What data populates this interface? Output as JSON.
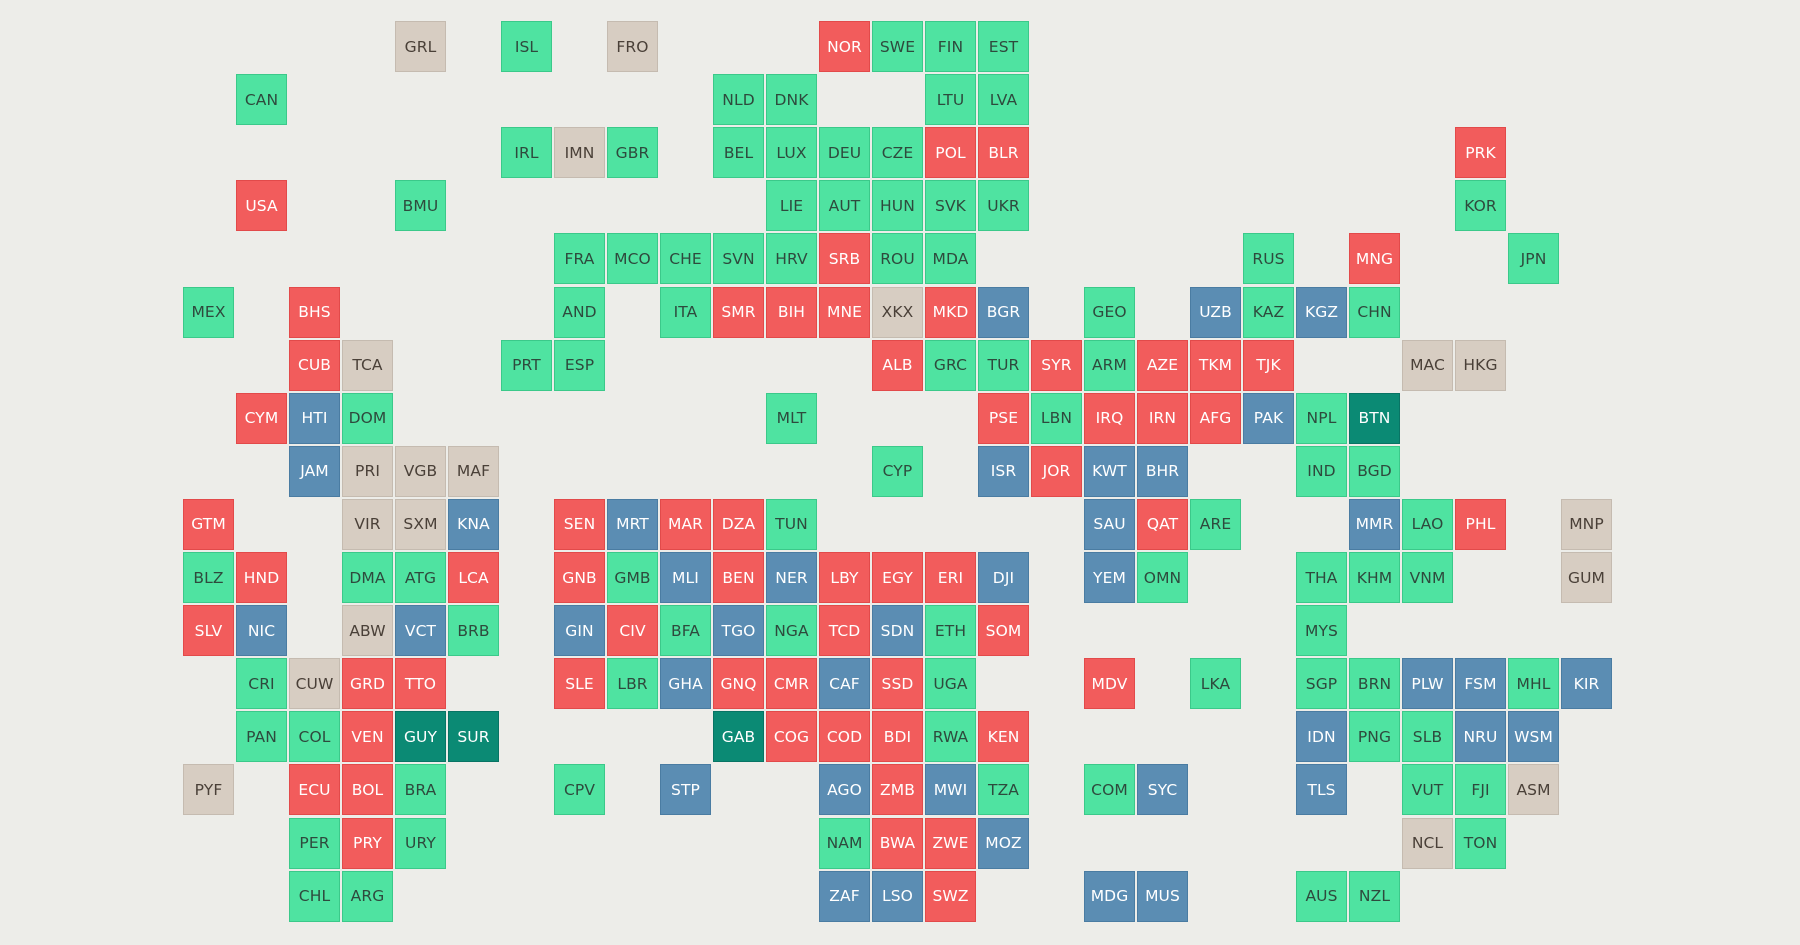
{
  "colors": {
    "background": "#edede9",
    "green": {
      "fill": "#4fe3a1",
      "text": "#2e4a3d",
      "edge": "#3bc98a"
    },
    "red": {
      "fill": "#f25c5c",
      "text": "#ffffff",
      "edge": "#e24a4a"
    },
    "blue": {
      "fill": "#5b8db3",
      "text": "#ffffff",
      "edge": "#4a7ca2"
    },
    "teal": {
      "fill": "#0b8a74",
      "text": "#ffffff",
      "edge": "#087464"
    },
    "beige": {
      "fill": "#d7cdc2",
      "text": "#4a4038",
      "edge": "#c5bbb0"
    }
  },
  "tiles": [
    {
      "code": "GRL",
      "col": 4,
      "row": 0,
      "cat": "beige"
    },
    {
      "code": "ISL",
      "col": 6,
      "row": 0,
      "cat": "green"
    },
    {
      "code": "FRO",
      "col": 8,
      "row": 0,
      "cat": "beige"
    },
    {
      "code": "NOR",
      "col": 12,
      "row": 0,
      "cat": "red"
    },
    {
      "code": "SWE",
      "col": 13,
      "row": 0,
      "cat": "green"
    },
    {
      "code": "FIN",
      "col": 14,
      "row": 0,
      "cat": "green"
    },
    {
      "code": "EST",
      "col": 15,
      "row": 0,
      "cat": "green"
    },
    {
      "code": "CAN",
      "col": 1,
      "row": 1,
      "cat": "green"
    },
    {
      "code": "NLD",
      "col": 10,
      "row": 1,
      "cat": "green"
    },
    {
      "code": "DNK",
      "col": 11,
      "row": 1,
      "cat": "green"
    },
    {
      "code": "LTU",
      "col": 14,
      "row": 1,
      "cat": "green"
    },
    {
      "code": "LVA",
      "col": 15,
      "row": 1,
      "cat": "green"
    },
    {
      "code": "IRL",
      "col": 6,
      "row": 2,
      "cat": "green"
    },
    {
      "code": "IMN",
      "col": 7,
      "row": 2,
      "cat": "beige"
    },
    {
      "code": "GBR",
      "col": 8,
      "row": 2,
      "cat": "green"
    },
    {
      "code": "BEL",
      "col": 10,
      "row": 2,
      "cat": "green"
    },
    {
      "code": "LUX",
      "col": 11,
      "row": 2,
      "cat": "green"
    },
    {
      "code": "DEU",
      "col": 12,
      "row": 2,
      "cat": "green"
    },
    {
      "code": "CZE",
      "col": 13,
      "row": 2,
      "cat": "green"
    },
    {
      "code": "POL",
      "col": 14,
      "row": 2,
      "cat": "red"
    },
    {
      "code": "BLR",
      "col": 15,
      "row": 2,
      "cat": "red"
    },
    {
      "code": "PRK",
      "col": 24,
      "row": 2,
      "cat": "red"
    },
    {
      "code": "USA",
      "col": 1,
      "row": 3,
      "cat": "red"
    },
    {
      "code": "BMU",
      "col": 4,
      "row": 3,
      "cat": "green"
    },
    {
      "code": "LIE",
      "col": 11,
      "row": 3,
      "cat": "green"
    },
    {
      "code": "AUT",
      "col": 12,
      "row": 3,
      "cat": "green"
    },
    {
      "code": "HUN",
      "col": 13,
      "row": 3,
      "cat": "green"
    },
    {
      "code": "SVK",
      "col": 14,
      "row": 3,
      "cat": "green"
    },
    {
      "code": "UKR",
      "col": 15,
      "row": 3,
      "cat": "green"
    },
    {
      "code": "KOR",
      "col": 24,
      "row": 3,
      "cat": "green"
    },
    {
      "code": "FRA",
      "col": 7,
      "row": 4,
      "cat": "green"
    },
    {
      "code": "MCO",
      "col": 8,
      "row": 4,
      "cat": "green"
    },
    {
      "code": "CHE",
      "col": 9,
      "row": 4,
      "cat": "green"
    },
    {
      "code": "SVN",
      "col": 10,
      "row": 4,
      "cat": "green"
    },
    {
      "code": "HRV",
      "col": 11,
      "row": 4,
      "cat": "green"
    },
    {
      "code": "SRB",
      "col": 12,
      "row": 4,
      "cat": "red"
    },
    {
      "code": "ROU",
      "col": 13,
      "row": 4,
      "cat": "green"
    },
    {
      "code": "MDA",
      "col": 14,
      "row": 4,
      "cat": "green"
    },
    {
      "code": "RUS",
      "col": 20,
      "row": 4,
      "cat": "green"
    },
    {
      "code": "MNG",
      "col": 22,
      "row": 4,
      "cat": "red"
    },
    {
      "code": "JPN",
      "col": 25,
      "row": 4,
      "cat": "green"
    },
    {
      "code": "MEX",
      "col": 0,
      "row": 5,
      "cat": "green"
    },
    {
      "code": "BHS",
      "col": 2,
      "row": 5,
      "cat": "red"
    },
    {
      "code": "AND",
      "col": 7,
      "row": 5,
      "cat": "green"
    },
    {
      "code": "ITA",
      "col": 9,
      "row": 5,
      "cat": "green"
    },
    {
      "code": "SMR",
      "col": 10,
      "row": 5,
      "cat": "red"
    },
    {
      "code": "BIH",
      "col": 11,
      "row": 5,
      "cat": "red"
    },
    {
      "code": "MNE",
      "col": 12,
      "row": 5,
      "cat": "red"
    },
    {
      "code": "XKX",
      "col": 13,
      "row": 5,
      "cat": "beige"
    },
    {
      "code": "MKD",
      "col": 14,
      "row": 5,
      "cat": "red"
    },
    {
      "code": "BGR",
      "col": 15,
      "row": 5,
      "cat": "blue"
    },
    {
      "code": "GEO",
      "col": 17,
      "row": 5,
      "cat": "green"
    },
    {
      "code": "UZB",
      "col": 19,
      "row": 5,
      "cat": "blue"
    },
    {
      "code": "KAZ",
      "col": 20,
      "row": 5,
      "cat": "green"
    },
    {
      "code": "KGZ",
      "col": 21,
      "row": 5,
      "cat": "blue"
    },
    {
      "code": "CHN",
      "col": 22,
      "row": 5,
      "cat": "green"
    },
    {
      "code": "CUB",
      "col": 2,
      "row": 6,
      "cat": "red"
    },
    {
      "code": "TCA",
      "col": 3,
      "row": 6,
      "cat": "beige"
    },
    {
      "code": "PRT",
      "col": 6,
      "row": 6,
      "cat": "green"
    },
    {
      "code": "ESP",
      "col": 7,
      "row": 6,
      "cat": "green"
    },
    {
      "code": "ALB",
      "col": 13,
      "row": 6,
      "cat": "red"
    },
    {
      "code": "GRC",
      "col": 14,
      "row": 6,
      "cat": "green"
    },
    {
      "code": "TUR",
      "col": 15,
      "row": 6,
      "cat": "green"
    },
    {
      "code": "SYR",
      "col": 16,
      "row": 6,
      "cat": "red"
    },
    {
      "code": "ARM",
      "col": 17,
      "row": 6,
      "cat": "green"
    },
    {
      "code": "AZE",
      "col": 18,
      "row": 6,
      "cat": "red"
    },
    {
      "code": "TKM",
      "col": 19,
      "row": 6,
      "cat": "red"
    },
    {
      "code": "TJK",
      "col": 20,
      "row": 6,
      "cat": "red"
    },
    {
      "code": "MAC",
      "col": 23,
      "row": 6,
      "cat": "beige"
    },
    {
      "code": "HKG",
      "col": 24,
      "row": 6,
      "cat": "beige"
    },
    {
      "code": "CYM",
      "col": 1,
      "row": 7,
      "cat": "red"
    },
    {
      "code": "HTI",
      "col": 2,
      "row": 7,
      "cat": "blue"
    },
    {
      "code": "DOM",
      "col": 3,
      "row": 7,
      "cat": "green"
    },
    {
      "code": "MLT",
      "col": 11,
      "row": 7,
      "cat": "green"
    },
    {
      "code": "PSE",
      "col": 15,
      "row": 7,
      "cat": "red"
    },
    {
      "code": "LBN",
      "col": 16,
      "row": 7,
      "cat": "green"
    },
    {
      "code": "IRQ",
      "col": 17,
      "row": 7,
      "cat": "red"
    },
    {
      "code": "IRN",
      "col": 18,
      "row": 7,
      "cat": "red"
    },
    {
      "code": "AFG",
      "col": 19,
      "row": 7,
      "cat": "red"
    },
    {
      "code": "PAK",
      "col": 20,
      "row": 7,
      "cat": "blue"
    },
    {
      "code": "NPL",
      "col": 21,
      "row": 7,
      "cat": "green"
    },
    {
      "code": "BTN",
      "col": 22,
      "row": 7,
      "cat": "teal"
    },
    {
      "code": "JAM",
      "col": 2,
      "row": 8,
      "cat": "blue"
    },
    {
      "code": "PRI",
      "col": 3,
      "row": 8,
      "cat": "beige"
    },
    {
      "code": "VGB",
      "col": 4,
      "row": 8,
      "cat": "beige"
    },
    {
      "code": "MAF",
      "col": 5,
      "row": 8,
      "cat": "beige"
    },
    {
      "code": "CYP",
      "col": 13,
      "row": 8,
      "cat": "green"
    },
    {
      "code": "ISR",
      "col": 15,
      "row": 8,
      "cat": "blue"
    },
    {
      "code": "JOR",
      "col": 16,
      "row": 8,
      "cat": "red"
    },
    {
      "code": "KWT",
      "col": 17,
      "row": 8,
      "cat": "blue"
    },
    {
      "code": "BHR",
      "col": 18,
      "row": 8,
      "cat": "blue"
    },
    {
      "code": "IND",
      "col": 21,
      "row": 8,
      "cat": "green"
    },
    {
      "code": "BGD",
      "col": 22,
      "row": 8,
      "cat": "green"
    },
    {
      "code": "GTM",
      "col": 0,
      "row": 9,
      "cat": "red"
    },
    {
      "code": "VIR",
      "col": 3,
      "row": 9,
      "cat": "beige"
    },
    {
      "code": "SXM",
      "col": 4,
      "row": 9,
      "cat": "beige"
    },
    {
      "code": "KNA",
      "col": 5,
      "row": 9,
      "cat": "blue"
    },
    {
      "code": "SEN",
      "col": 7,
      "row": 9,
      "cat": "red"
    },
    {
      "code": "MRT",
      "col": 8,
      "row": 9,
      "cat": "blue"
    },
    {
      "code": "MAR",
      "col": 9,
      "row": 9,
      "cat": "red"
    },
    {
      "code": "DZA",
      "col": 10,
      "row": 9,
      "cat": "red"
    },
    {
      "code": "TUN",
      "col": 11,
      "row": 9,
      "cat": "green"
    },
    {
      "code": "SAU",
      "col": 17,
      "row": 9,
      "cat": "blue"
    },
    {
      "code": "QAT",
      "col": 18,
      "row": 9,
      "cat": "red"
    },
    {
      "code": "ARE",
      "col": 19,
      "row": 9,
      "cat": "green"
    },
    {
      "code": "MMR",
      "col": 22,
      "row": 9,
      "cat": "blue"
    },
    {
      "code": "LAO",
      "col": 23,
      "row": 9,
      "cat": "green"
    },
    {
      "code": "PHL",
      "col": 24,
      "row": 9,
      "cat": "red"
    },
    {
      "code": "MNP",
      "col": 26,
      "row": 9,
      "cat": "beige"
    },
    {
      "code": "BLZ",
      "col": 0,
      "row": 10,
      "cat": "green"
    },
    {
      "code": "HND",
      "col": 1,
      "row": 10,
      "cat": "red"
    },
    {
      "code": "DMA",
      "col": 3,
      "row": 10,
      "cat": "green"
    },
    {
      "code": "ATG",
      "col": 4,
      "row": 10,
      "cat": "green"
    },
    {
      "code": "LCA",
      "col": 5,
      "row": 10,
      "cat": "red"
    },
    {
      "code": "GNB",
      "col": 7,
      "row": 10,
      "cat": "red"
    },
    {
      "code": "GMB",
      "col": 8,
      "row": 10,
      "cat": "green"
    },
    {
      "code": "MLI",
      "col": 9,
      "row": 10,
      "cat": "blue"
    },
    {
      "code": "BEN",
      "col": 10,
      "row": 10,
      "cat": "red"
    },
    {
      "code": "NER",
      "col": 11,
      "row": 10,
      "cat": "blue"
    },
    {
      "code": "LBY",
      "col": 12,
      "row": 10,
      "cat": "red"
    },
    {
      "code": "EGY",
      "col": 13,
      "row": 10,
      "cat": "red"
    },
    {
      "code": "ERI",
      "col": 14,
      "row": 10,
      "cat": "red"
    },
    {
      "code": "DJI",
      "col": 15,
      "row": 10,
      "cat": "blue"
    },
    {
      "code": "YEM",
      "col": 17,
      "row": 10,
      "cat": "blue"
    },
    {
      "code": "OMN",
      "col": 18,
      "row": 10,
      "cat": "green"
    },
    {
      "code": "THA",
      "col": 21,
      "row": 10,
      "cat": "green"
    },
    {
      "code": "KHM",
      "col": 22,
      "row": 10,
      "cat": "green"
    },
    {
      "code": "VNM",
      "col": 23,
      "row": 10,
      "cat": "green"
    },
    {
      "code": "GUM",
      "col": 26,
      "row": 10,
      "cat": "beige"
    },
    {
      "code": "SLV",
      "col": 0,
      "row": 11,
      "cat": "red"
    },
    {
      "code": "NIC",
      "col": 1,
      "row": 11,
      "cat": "blue"
    },
    {
      "code": "ABW",
      "col": 3,
      "row": 11,
      "cat": "beige"
    },
    {
      "code": "VCT",
      "col": 4,
      "row": 11,
      "cat": "blue"
    },
    {
      "code": "BRB",
      "col": 5,
      "row": 11,
      "cat": "green"
    },
    {
      "code": "GIN",
      "col": 7,
      "row": 11,
      "cat": "blue"
    },
    {
      "code": "CIV",
      "col": 8,
      "row": 11,
      "cat": "red"
    },
    {
      "code": "BFA",
      "col": 9,
      "row": 11,
      "cat": "green"
    },
    {
      "code": "TGO",
      "col": 10,
      "row": 11,
      "cat": "blue"
    },
    {
      "code": "NGA",
      "col": 11,
      "row": 11,
      "cat": "green"
    },
    {
      "code": "TCD",
      "col": 12,
      "row": 11,
      "cat": "red"
    },
    {
      "code": "SDN",
      "col": 13,
      "row": 11,
      "cat": "blue"
    },
    {
      "code": "ETH",
      "col": 14,
      "row": 11,
      "cat": "green"
    },
    {
      "code": "SOM",
      "col": 15,
      "row": 11,
      "cat": "red"
    },
    {
      "code": "MYS",
      "col": 21,
      "row": 11,
      "cat": "green"
    },
    {
      "code": "CRI",
      "col": 1,
      "row": 12,
      "cat": "green"
    },
    {
      "code": "CUW",
      "col": 2,
      "row": 12,
      "cat": "beige"
    },
    {
      "code": "GRD",
      "col": 3,
      "row": 12,
      "cat": "red"
    },
    {
      "code": "TTO",
      "col": 4,
      "row": 12,
      "cat": "red"
    },
    {
      "code": "SLE",
      "col": 7,
      "row": 12,
      "cat": "red"
    },
    {
      "code": "LBR",
      "col": 8,
      "row": 12,
      "cat": "green"
    },
    {
      "code": "GHA",
      "col": 9,
      "row": 12,
      "cat": "blue"
    },
    {
      "code": "GNQ",
      "col": 10,
      "row": 12,
      "cat": "red"
    },
    {
      "code": "CMR",
      "col": 11,
      "row": 12,
      "cat": "red"
    },
    {
      "code": "CAF",
      "col": 12,
      "row": 12,
      "cat": "blue"
    },
    {
      "code": "SSD",
      "col": 13,
      "row": 12,
      "cat": "red"
    },
    {
      "code": "UGA",
      "col": 14,
      "row": 12,
      "cat": "green"
    },
    {
      "code": "MDV",
      "col": 17,
      "row": 12,
      "cat": "red"
    },
    {
      "code": "LKA",
      "col": 19,
      "row": 12,
      "cat": "green"
    },
    {
      "code": "SGP",
      "col": 21,
      "row": 12,
      "cat": "green"
    },
    {
      "code": "BRN",
      "col": 22,
      "row": 12,
      "cat": "green"
    },
    {
      "code": "PLW",
      "col": 23,
      "row": 12,
      "cat": "blue"
    },
    {
      "code": "FSM",
      "col": 24,
      "row": 12,
      "cat": "blue"
    },
    {
      "code": "MHL",
      "col": 25,
      "row": 12,
      "cat": "green"
    },
    {
      "code": "KIR",
      "col": 26,
      "row": 12,
      "cat": "blue"
    },
    {
      "code": "PAN",
      "col": 1,
      "row": 13,
      "cat": "green"
    },
    {
      "code": "COL",
      "col": 2,
      "row": 13,
      "cat": "green"
    },
    {
      "code": "VEN",
      "col": 3,
      "row": 13,
      "cat": "red"
    },
    {
      "code": "GUY",
      "col": 4,
      "row": 13,
      "cat": "teal"
    },
    {
      "code": "SUR",
      "col": 5,
      "row": 13,
      "cat": "teal"
    },
    {
      "code": "GAB",
      "col": 10,
      "row": 13,
      "cat": "teal"
    },
    {
      "code": "COG",
      "col": 11,
      "row": 13,
      "cat": "red"
    },
    {
      "code": "COD",
      "col": 12,
      "row": 13,
      "cat": "red"
    },
    {
      "code": "BDI",
      "col": 13,
      "row": 13,
      "cat": "red"
    },
    {
      "code": "RWA",
      "col": 14,
      "row": 13,
      "cat": "green"
    },
    {
      "code": "KEN",
      "col": 15,
      "row": 13,
      "cat": "red"
    },
    {
      "code": "IDN",
      "col": 21,
      "row": 13,
      "cat": "blue"
    },
    {
      "code": "PNG",
      "col": 22,
      "row": 13,
      "cat": "green"
    },
    {
      "code": "SLB",
      "col": 23,
      "row": 13,
      "cat": "green"
    },
    {
      "code": "NRU",
      "col": 24,
      "row": 13,
      "cat": "blue"
    },
    {
      "code": "WSM",
      "col": 25,
      "row": 13,
      "cat": "blue"
    },
    {
      "code": "PYF",
      "col": 0,
      "row": 14,
      "cat": "beige"
    },
    {
      "code": "ECU",
      "col": 2,
      "row": 14,
      "cat": "red"
    },
    {
      "code": "BOL",
      "col": 3,
      "row": 14,
      "cat": "red"
    },
    {
      "code": "BRA",
      "col": 4,
      "row": 14,
      "cat": "green"
    },
    {
      "code": "CPV",
      "col": 7,
      "row": 14,
      "cat": "green"
    },
    {
      "code": "STP",
      "col": 9,
      "row": 14,
      "cat": "blue"
    },
    {
      "code": "AGO",
      "col": 12,
      "row": 14,
      "cat": "blue"
    },
    {
      "code": "ZMB",
      "col": 13,
      "row": 14,
      "cat": "red"
    },
    {
      "code": "MWI",
      "col": 14,
      "row": 14,
      "cat": "blue"
    },
    {
      "code": "TZA",
      "col": 15,
      "row": 14,
      "cat": "green"
    },
    {
      "code": "COM",
      "col": 17,
      "row": 14,
      "cat": "green"
    },
    {
      "code": "SYC",
      "col": 18,
      "row": 14,
      "cat": "blue"
    },
    {
      "code": "TLS",
      "col": 21,
      "row": 14,
      "cat": "blue"
    },
    {
      "code": "VUT",
      "col": 23,
      "row": 14,
      "cat": "green"
    },
    {
      "code": "FJI",
      "col": 24,
      "row": 14,
      "cat": "green"
    },
    {
      "code": "ASM",
      "col": 25,
      "row": 14,
      "cat": "beige"
    },
    {
      "code": "PER",
      "col": 2,
      "row": 15,
      "cat": "green"
    },
    {
      "code": "PRY",
      "col": 3,
      "row": 15,
      "cat": "red"
    },
    {
      "code": "URY",
      "col": 4,
      "row": 15,
      "cat": "green"
    },
    {
      "code": "NAM",
      "col": 12,
      "row": 15,
      "cat": "green"
    },
    {
      "code": "BWA",
      "col": 13,
      "row": 15,
      "cat": "red"
    },
    {
      "code": "ZWE",
      "col": 14,
      "row": 15,
      "cat": "red"
    },
    {
      "code": "MOZ",
      "col": 15,
      "row": 15,
      "cat": "blue"
    },
    {
      "code": "NCL",
      "col": 23,
      "row": 15,
      "cat": "beige"
    },
    {
      "code": "TON",
      "col": 24,
      "row": 15,
      "cat": "green"
    },
    {
      "code": "CHL",
      "col": 2,
      "row": 16,
      "cat": "green"
    },
    {
      "code": "ARG",
      "col": 3,
      "row": 16,
      "cat": "green"
    },
    {
      "code": "ZAF",
      "col": 12,
      "row": 16,
      "cat": "blue"
    },
    {
      "code": "LSO",
      "col": 13,
      "row": 16,
      "cat": "blue"
    },
    {
      "code": "SWZ",
      "col": 14,
      "row": 16,
      "cat": "red"
    },
    {
      "code": "MDG",
      "col": 17,
      "row": 16,
      "cat": "blue"
    },
    {
      "code": "MUS",
      "col": 18,
      "row": 16,
      "cat": "blue"
    },
    {
      "code": "AUS",
      "col": 21,
      "row": 16,
      "cat": "green"
    },
    {
      "code": "NZL",
      "col": 22,
      "row": 16,
      "cat": "green"
    }
  ]
}
